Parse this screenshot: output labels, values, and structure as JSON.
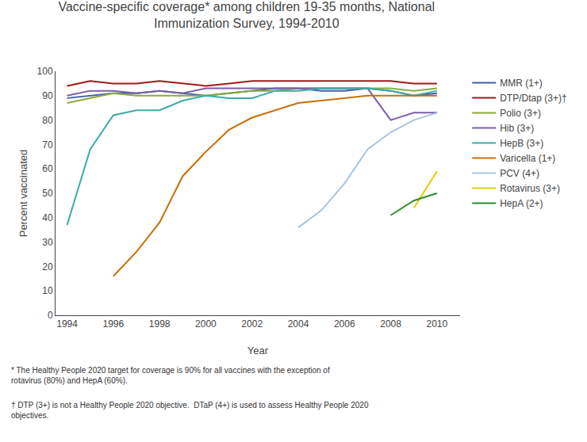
{
  "chart_data": {
    "type": "line",
    "title": "Vaccine-specific coverage* among children 19-35 months, National\nImmunization Survey, 1994-2010",
    "x_label": "Year",
    "y_label": "Percent vaccinated",
    "xlim": [
      1993.5,
      2011.0
    ],
    "xticks": [
      1994,
      1996,
      1998,
      2000,
      2002,
      2004,
      2006,
      2008,
      2010
    ],
    "ylim": [
      0,
      100
    ],
    "yticks": [
      0,
      10,
      20,
      30,
      40,
      50,
      60,
      70,
      80,
      90,
      100
    ],
    "grid": false,
    "legend": "right",
    "annotations": [
      "* The Healthy People 2020 target for coverage is 90% for all vaccines with the exception of\nrotavirus (80%) and HepA (60%).",
      "† DTP (3+) is not a Healthy People 2020 objective.  DTaP (4+) is used to assess Healthy People 2020\nobjectives."
    ],
    "series": [
      {
        "name": "MMR (1+)",
        "color": "#3f5faf",
        "x": [
          1994,
          1995,
          1996,
          1997,
          1998,
          1999,
          2000,
          2001,
          2002,
          2003,
          2004,
          2005,
          2006,
          2007,
          2008,
          2009,
          2010
        ],
        "values": [
          89,
          90,
          91,
          91,
          92,
          91,
          90,
          91,
          92,
          93,
          93,
          92,
          92,
          93,
          92,
          90,
          91
        ]
      },
      {
        "name": "DTP/Dtap (3+)†",
        "color": "#9e1a1a",
        "x": [
          1994,
          1995,
          1996,
          1997,
          1998,
          1999,
          2000,
          2001,
          2002,
          2003,
          2004,
          2005,
          2006,
          2007,
          2008,
          2009,
          2010
        ],
        "values": [
          94,
          96,
          95,
          95,
          96,
          95,
          94,
          95,
          96,
          96,
          96,
          96,
          96,
          96,
          96,
          95,
          95
        ]
      },
      {
        "name": "Polio (3+)",
        "color": "#8aad3a",
        "x": [
          1994,
          1995,
          1996,
          1997,
          1998,
          1999,
          2000,
          2001,
          2002,
          2003,
          2004,
          2005,
          2006,
          2007,
          2008,
          2009,
          2010
        ],
        "values": [
          87,
          89,
          91,
          90,
          90,
          90,
          90,
          91,
          92,
          92,
          93,
          93,
          93,
          93,
          93,
          92,
          93
        ]
      },
      {
        "name": "Hib (3+)",
        "color": "#7b5ea7",
        "x": [
          1994,
          1995,
          1996,
          1997,
          1998,
          1999,
          2000,
          2001,
          2002,
          2003,
          2004,
          2005,
          2006,
          2007,
          2008,
          2009,
          2010
        ],
        "values": [
          90,
          92,
          92,
          91,
          92,
          91,
          93,
          93,
          93,
          93,
          93,
          93,
          93,
          93,
          80,
          83,
          83
        ]
      },
      {
        "name": "HepB (3+)",
        "color": "#3aada5",
        "x": [
          1994,
          1995,
          1996,
          1997,
          1998,
          1999,
          2000,
          2001,
          2002,
          2003,
          2004,
          2005,
          2006,
          2007,
          2008,
          2009,
          2010
        ],
        "values": [
          37,
          68,
          82,
          84,
          84,
          88,
          90,
          89,
          89,
          92,
          92,
          93,
          93,
          93,
          92,
          90,
          92
        ]
      },
      {
        "name": "Varicella (1+)",
        "color": "#c8700a",
        "x": [
          1996,
          1997,
          1998,
          1999,
          2000,
          2001,
          2002,
          2003,
          2004,
          2005,
          2006,
          2007,
          2008,
          2009,
          2010
        ],
        "values": [
          16,
          26,
          38,
          57,
          67,
          76,
          81,
          84,
          87,
          88,
          89,
          90,
          90,
          90,
          90
        ]
      },
      {
        "name": "PCV (4+)",
        "color": "#a8c4e0",
        "x": [
          2004,
          2005,
          2006,
          2007,
          2008,
          2009,
          2010
        ],
        "values": [
          36,
          43,
          54,
          68,
          75,
          80,
          83
        ]
      },
      {
        "name": "Rotavirus (3+)",
        "color": "#ddd000",
        "x": [
          2009,
          2010
        ],
        "values": [
          44,
          59
        ]
      },
      {
        "name": "HepA (2+)",
        "color": "#2e8b2e",
        "x": [
          2008,
          2009,
          2010
        ],
        "values": [
          41,
          47,
          50
        ]
      }
    ]
  }
}
